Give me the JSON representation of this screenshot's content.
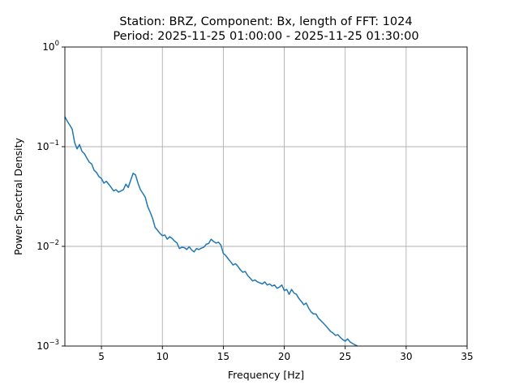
{
  "chart_data": {
    "type": "line",
    "title_line1": "Station: BRZ, Component: Bx, length of FFT: 1024",
    "title_line2": "Period: 2025-11-25 01:00:00 - 2025-11-25 01:30:00",
    "xlabel": "Frequency [Hz]",
    "ylabel": "Power Spectral Density",
    "xlim": [
      2,
      35
    ],
    "ylim": [
      0.001,
      1
    ],
    "yscale": "log",
    "grid": true,
    "line_color": "#1f77b4",
    "x_ticks": [
      {
        "value": 5,
        "label": "5"
      },
      {
        "value": 10,
        "label": "10"
      },
      {
        "value": 15,
        "label": "15"
      },
      {
        "value": 20,
        "label": "20"
      },
      {
        "value": 25,
        "label": "25"
      },
      {
        "value": 30,
        "label": "30"
      },
      {
        "value": 35,
        "label": "35"
      }
    ],
    "y_ticks": [
      {
        "value": 0.001,
        "base": "10",
        "exp": "−3"
      },
      {
        "value": 0.01,
        "base": "10",
        "exp": "−2"
      },
      {
        "value": 0.1,
        "base": "10",
        "exp": "−1"
      },
      {
        "value": 1,
        "base": "10",
        "exp": "0"
      }
    ],
    "series": [
      {
        "x": [
          2.0,
          2.2,
          2.4,
          2.6,
          2.8,
          3.0,
          3.2,
          3.4,
          3.6,
          3.8,
          4.0,
          4.2,
          4.4,
          4.6,
          4.8,
          5.0,
          5.2,
          5.4,
          5.6,
          5.8,
          6.0,
          6.2,
          6.4,
          6.6,
          6.8,
          7.0,
          7.2,
          7.4,
          7.6,
          7.8,
          8.0,
          8.2,
          8.4,
          8.6,
          8.8,
          9.0,
          9.2,
          9.4,
          9.6,
          9.8,
          10.0,
          10.2,
          10.4,
          10.6,
          10.8,
          11.0,
          11.2,
          11.4,
          11.6,
          11.8,
          12.0,
          12.2,
          12.4,
          12.6,
          12.8,
          13.0,
          13.2,
          13.4,
          13.6,
          13.8,
          14.0,
          14.2,
          14.4,
          14.6,
          14.8,
          15.0,
          15.2,
          15.4,
          15.6,
          15.8,
          16.0,
          16.2,
          16.4,
          16.6,
          16.8,
          17.0,
          17.2,
          17.4,
          17.6,
          17.8,
          18.0,
          18.2,
          18.4,
          18.6,
          18.8,
          19.0,
          19.2,
          19.4,
          19.6,
          19.8,
          20.0,
          20.2,
          20.4,
          20.6,
          20.8,
          21.0,
          21.2,
          21.4,
          21.6,
          21.8,
          22.0,
          22.2,
          22.4,
          22.6,
          22.8,
          23.0,
          23.2,
          23.4,
          23.6,
          23.8,
          24.0,
          24.2,
          24.4,
          24.6,
          24.8,
          25.0,
          25.2,
          25.4,
          25.6,
          25.8,
          26.0
        ],
        "y": [
          0.2,
          0.18,
          0.165,
          0.15,
          0.11,
          0.095,
          0.105,
          0.09,
          0.085,
          0.077,
          0.07,
          0.067,
          0.058,
          0.055,
          0.05,
          0.048,
          0.043,
          0.045,
          0.042,
          0.039,
          0.036,
          0.037,
          0.035,
          0.036,
          0.037,
          0.042,
          0.039,
          0.046,
          0.054,
          0.052,
          0.043,
          0.037,
          0.034,
          0.031,
          0.025,
          0.022,
          0.019,
          0.0155,
          0.0145,
          0.0135,
          0.0128,
          0.013,
          0.0118,
          0.0125,
          0.012,
          0.0113,
          0.0108,
          0.0095,
          0.0098,
          0.0097,
          0.0093,
          0.0099,
          0.0092,
          0.0088,
          0.0095,
          0.0093,
          0.0096,
          0.0098,
          0.0105,
          0.0107,
          0.0118,
          0.0112,
          0.0108,
          0.011,
          0.0103,
          0.0085,
          0.0081,
          0.0075,
          0.007,
          0.0065,
          0.0067,
          0.0063,
          0.0058,
          0.0055,
          0.0056,
          0.0051,
          0.0048,
          0.0045,
          0.0046,
          0.0044,
          0.0043,
          0.0042,
          0.0044,
          0.0041,
          0.0042,
          0.004,
          0.0041,
          0.0038,
          0.0039,
          0.0041,
          0.0036,
          0.0037,
          0.0033,
          0.0037,
          0.0034,
          0.0033,
          0.003,
          0.0028,
          0.0026,
          0.0027,
          0.0024,
          0.0022,
          0.0021,
          0.0021,
          0.0019,
          0.0018,
          0.0017,
          0.0016,
          0.0015,
          0.0014,
          0.00135,
          0.00128,
          0.0013,
          0.00122,
          0.00116,
          0.00112,
          0.00118,
          0.0011,
          0.00106,
          0.00103,
          0.001
        ]
      }
    ]
  }
}
